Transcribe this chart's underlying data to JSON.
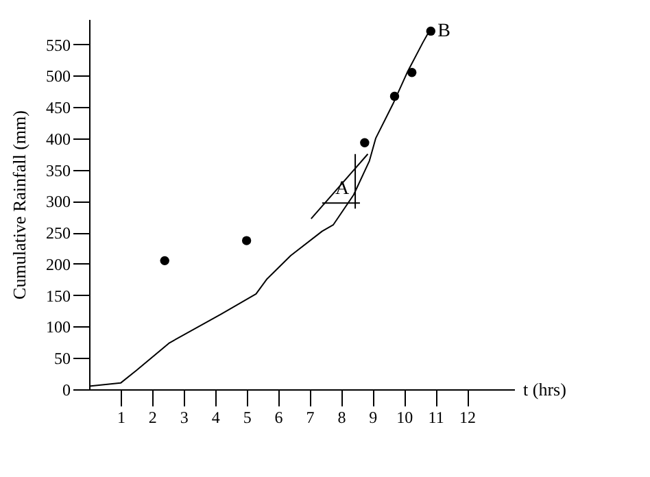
{
  "chart_data": {
    "type": "line",
    "xlabel": "t (hrs)",
    "ylabel": "Cumulative Rainfall (mm)",
    "xlim": [
      0,
      13.5
    ],
    "ylim": [
      0,
      590
    ],
    "xticks": [
      1,
      2,
      3,
      4,
      5,
      6,
      7,
      8,
      9,
      10,
      11,
      12
    ],
    "yticks": [
      0,
      50,
      100,
      150,
      200,
      250,
      300,
      350,
      400,
      450,
      500,
      550
    ],
    "grid": false,
    "series": [
      {
        "color": "#000000",
        "marker": "none",
        "line_style": "solid",
        "x": [
          0,
          1,
          1.5,
          2.55,
          4.2,
          5.3,
          5.65,
          6.4,
          7.4,
          7.75,
          8.4,
          8.9,
          9.1,
          9.65,
          10.1,
          10.6,
          10.8
        ],
        "values": [
          5,
          10,
          30,
          74,
          120,
          152,
          176,
          213,
          252,
          262,
          310,
          364,
          400,
          455,
          505,
          553,
          571
        ]
      },
      {
        "type": "scatter",
        "color": "#000000",
        "marker": "circle",
        "x": [
          2.4,
          5,
          8.75,
          9.7,
          10.25,
          10.85
        ],
        "values": [
          205,
          237,
          393,
          467,
          505,
          571
        ]
      },
      {
        "type": "line",
        "color": "#000000",
        "marker": "none",
        "line_style": "solid",
        "x": [
          7.05,
          8.85
        ],
        "values": [
          272,
          375
        ]
      },
      {
        "type": "line",
        "color": "#000000",
        "marker": "none",
        "line_style": "solid",
        "x": [
          7.4,
          8.6
        ],
        "values": [
          297,
          297
        ]
      },
      {
        "type": "line",
        "color": "#000000",
        "marker": "none",
        "line_style": "solid",
        "x": [
          8.45,
          8.45
        ],
        "values": [
          288,
          375
        ]
      }
    ],
    "annotations": [
      {
        "text": "A",
        "x": 7.6,
        "y": 320
      },
      {
        "text": "B",
        "x": 10.85,
        "y": 571
      }
    ]
  }
}
